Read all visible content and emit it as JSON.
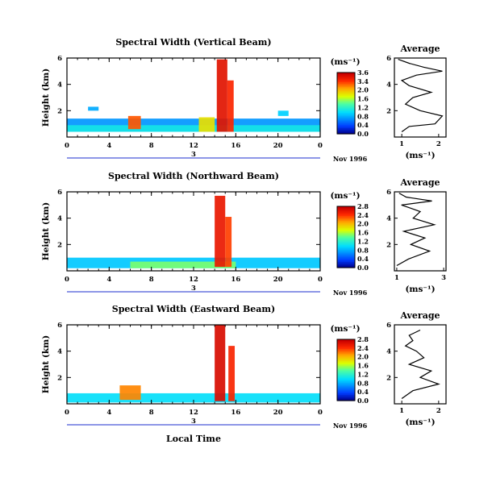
{
  "figure": {
    "y_axis_label": "Height (km)",
    "x_axis_label": "Local Time",
    "day_label": "3",
    "month_year_label": "Nov 1996",
    "colorbar_unit": "(ms⁻¹)",
    "avg_title": "Average",
    "avg_unit": "(ms⁻¹)"
  },
  "chart_data": [
    {
      "type": "heatmap",
      "title": "Spectral Width (Vertical Beam)",
      "xlabel": "",
      "ylabel": "Height (km)",
      "x_ticks": [
        "0",
        "4",
        "8",
        "12",
        "16",
        "20",
        "0"
      ],
      "y_ticks": [
        "2",
        "4",
        "6"
      ],
      "xlim": [
        0,
        24
      ],
      "ylim": [
        0,
        6
      ],
      "colorbar_ticks": [
        "3.6",
        "3.4",
        "2.0",
        "1.6",
        "1.2",
        "0.8",
        "0.4",
        "0.0"
      ],
      "colorbar_range": [
        0,
        3.6
      ],
      "cells": [
        {
          "t0": 0,
          "t1": 24,
          "h0": 0.4,
          "h1": 1.4,
          "v": 0.9
        },
        {
          "t0": 0,
          "t1": 24,
          "h0": 0.4,
          "h1": 0.9,
          "v": 1.4
        },
        {
          "t0": 5.8,
          "t1": 7.0,
          "h0": 0.6,
          "h1": 1.6,
          "v": 3.0
        },
        {
          "t0": 14.2,
          "t1": 15.2,
          "h0": 0.4,
          "h1": 5.9,
          "v": 3.4
        },
        {
          "t0": 15.2,
          "t1": 15.8,
          "h0": 0.4,
          "h1": 4.3,
          "v": 3.2
        },
        {
          "t0": 12.5,
          "t1": 14.0,
          "h0": 0.4,
          "h1": 1.5,
          "v": 2.4
        },
        {
          "t0": 2,
          "t1": 3,
          "h0": 2.0,
          "h1": 2.3,
          "v": 1.0
        },
        {
          "t0": 20,
          "t1": 21,
          "h0": 1.6,
          "h1": 2.0,
          "v": 1.2
        }
      ],
      "average": {
        "xlim": [
          0.8,
          2.2
        ],
        "ylim": [
          0,
          6
        ],
        "x_ticks": [
          "1",
          "2"
        ],
        "y_ticks": [
          "2",
          "4",
          "6"
        ],
        "x": [
          1.0,
          1.2,
          1.9,
          2.1,
          1.5,
          1.1,
          1.3,
          1.8,
          1.2,
          1.0,
          1.4,
          2.1,
          1.6,
          1.2,
          0.9
        ],
        "y": [
          0.4,
          0.8,
          1.0,
          1.6,
          2.0,
          2.5,
          3.0,
          3.4,
          3.9,
          4.3,
          4.7,
          5.0,
          5.3,
          5.6,
          5.9
        ]
      }
    },
    {
      "type": "heatmap",
      "title": "Spectral Width (Northward Beam)",
      "xlabel": "",
      "ylabel": "Height (km)",
      "x_ticks": [
        "0",
        "4",
        "8",
        "12",
        "16",
        "20",
        "0"
      ],
      "y_ticks": [
        "2",
        "4",
        "6"
      ],
      "xlim": [
        0,
        24
      ],
      "ylim": [
        0,
        6
      ],
      "colorbar_ticks": [
        "2.8",
        "2.4",
        "2.0",
        "1.6",
        "1.2",
        "0.8",
        "0.4",
        "0.0"
      ],
      "colorbar_range": [
        0,
        2.8
      ],
      "cells": [
        {
          "t0": 0,
          "t1": 24,
          "h0": 0.2,
          "h1": 1.0,
          "v": 0.9
        },
        {
          "t0": 6,
          "t1": 16,
          "h0": 0.2,
          "h1": 0.7,
          "v": 1.5
        },
        {
          "t0": 14.0,
          "t1": 15.0,
          "h0": 0.3,
          "h1": 5.7,
          "v": 2.6
        },
        {
          "t0": 15.0,
          "t1": 15.6,
          "h0": 0.3,
          "h1": 4.1,
          "v": 2.4
        }
      ],
      "average": {
        "xlim": [
          0.9,
          3.1
        ],
        "ylim": [
          0,
          6
        ],
        "x_ticks": [
          "1",
          "3"
        ],
        "y_ticks": [
          "2",
          "4",
          "6"
        ],
        "x": [
          1.0,
          1.5,
          2.4,
          1.6,
          2.2,
          1.3,
          2.6,
          1.7,
          2.0,
          1.2,
          2.5,
          1.4,
          1.1
        ],
        "y": [
          0.4,
          0.9,
          1.5,
          2.0,
          2.5,
          3.0,
          3.5,
          4.0,
          4.5,
          5.0,
          5.3,
          5.6,
          5.9
        ]
      }
    },
    {
      "type": "heatmap",
      "title": "Spectral Width (Eastward Beam)",
      "xlabel": "Local Time",
      "ylabel": "Height (km)",
      "x_ticks": [
        "0",
        "4",
        "8",
        "12",
        "16",
        "20",
        "0"
      ],
      "y_ticks": [
        "2",
        "4",
        "6"
      ],
      "xlim": [
        0,
        24
      ],
      "ylim": [
        0,
        6
      ],
      "colorbar_ticks": [
        "2.8",
        "2.4",
        "2.0",
        "1.6",
        "1.2",
        "0.8",
        "0.4",
        "0.0"
      ],
      "colorbar_range": [
        0,
        2.8
      ],
      "cells": [
        {
          "t0": 0,
          "t1": 24,
          "h0": 0.1,
          "h1": 0.8,
          "v": 1.0
        },
        {
          "t0": 5,
          "t1": 7,
          "h0": 0.3,
          "h1": 1.4,
          "v": 2.2
        },
        {
          "t0": 14.0,
          "t1": 15.0,
          "h0": 0.2,
          "h1": 6.0,
          "v": 2.7
        },
        {
          "t0": 15.3,
          "t1": 15.9,
          "h0": 0.2,
          "h1": 4.4,
          "v": 2.5
        }
      ],
      "average": {
        "xlim": [
          0.8,
          2.2
        ],
        "ylim": [
          0,
          6
        ],
        "x_ticks": [
          "1",
          "2"
        ],
        "y_ticks": [
          "2",
          "4",
          "6"
        ],
        "x": [
          1.0,
          1.3,
          2.0,
          1.5,
          1.8,
          1.2,
          1.6,
          1.4,
          1.1,
          1.3,
          1.2,
          1.5
        ],
        "y": [
          0.4,
          1.0,
          1.5,
          2.0,
          2.5,
          3.0,
          3.5,
          4.0,
          4.4,
          4.8,
          5.2,
          5.6
        ]
      }
    }
  ]
}
